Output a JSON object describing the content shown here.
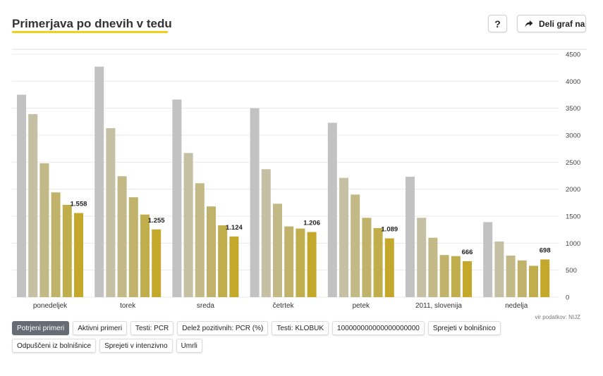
{
  "header": {
    "title": "Primerjava po dnevih v tedu",
    "help_label": "?",
    "share_label": "Deli graf na"
  },
  "source": "vir podatkov: NIJZ",
  "tabs": [
    {
      "label": "Potrjeni primeri",
      "active": true
    },
    {
      "label": "Aktivni primeri",
      "active": false
    },
    {
      "label": "Testi: PCR",
      "active": false
    },
    {
      "label": "Delež pozitivnih: PCR (%)",
      "active": false
    },
    {
      "label": "Testi: KLOBUK",
      "active": false
    },
    {
      "label": "100000000000000000000",
      "active": false
    },
    {
      "label": "Sprejeti v bolnišnico",
      "active": false
    },
    {
      "label": "Odpuščeni iz bolnišnice",
      "active": false
    },
    {
      "label": "Sprejeti v intenzivno",
      "active": false
    },
    {
      "label": "Umrli",
      "active": false
    }
  ],
  "colors": {
    "series": [
      "#c2c2c2",
      "#c5bfa4",
      "#c2b986",
      "#c0b26a",
      "#c0ad4b",
      "#c3a82c"
    ],
    "grid": "#e8e8e8",
    "axis_text": "#444444",
    "title_underline": "#f4cf1c"
  },
  "chart_data": {
    "type": "bar",
    "categories": [
      "ponedeljek",
      "torek",
      "sreda",
      "četrtek",
      "petek",
      "2011, slovenija",
      "nedelja"
    ],
    "series": [
      {
        "values": [
          3750,
          4270,
          3660,
          3500,
          3230,
          2230,
          1390
        ]
      },
      {
        "values": [
          3390,
          3130,
          2670,
          2370,
          2210,
          1470,
          1030
        ]
      },
      {
        "values": [
          2480,
          2240,
          2110,
          1730,
          1900,
          1100,
          770
        ]
      },
      {
        "values": [
          1940,
          1850,
          1680,
          1310,
          1470,
          780,
          680
        ]
      },
      {
        "values": [
          1710,
          1530,
          1330,
          1270,
          1280,
          760,
          580
        ]
      },
      {
        "values": [
          1558,
          1255,
          1124,
          1206,
          1089,
          666,
          698
        ]
      }
    ],
    "data_labels": [
      "1.558",
      "1.255",
      "1.124",
      "1.206",
      "1.089",
      "666",
      "698"
    ],
    "y_ticks": [
      0,
      500,
      1000,
      1500,
      2000,
      2500,
      3000,
      3500,
      4000,
      4500
    ],
    "ylim": [
      0,
      4500
    ],
    "y_axis_side": "right",
    "grid": true
  }
}
